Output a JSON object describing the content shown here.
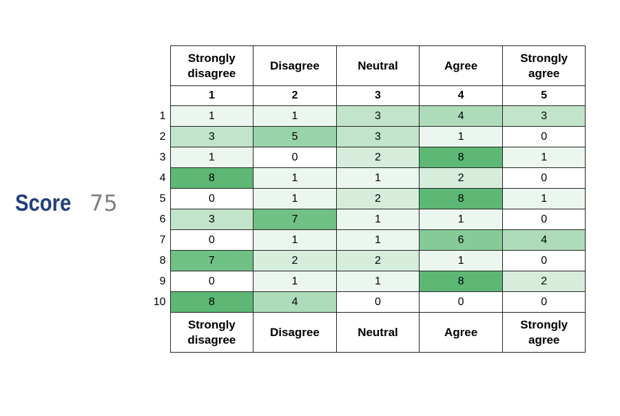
{
  "score": {
    "label": "Score",
    "value": "75"
  },
  "chart_data": {
    "type": "heatmap",
    "columns": [
      "Strongly disagree",
      "Disagree",
      "Neutral",
      "Agree",
      "Strongly agree"
    ],
    "column_numbers": [
      "1",
      "2",
      "3",
      "4",
      "5"
    ],
    "rows": [
      "1",
      "2",
      "3",
      "4",
      "5",
      "6",
      "7",
      "8",
      "9",
      "10"
    ],
    "values": [
      [
        1,
        1,
        3,
        4,
        3
      ],
      [
        3,
        5,
        3,
        1,
        0
      ],
      [
        1,
        0,
        2,
        8,
        1
      ],
      [
        8,
        1,
        1,
        2,
        0
      ],
      [
        0,
        1,
        2,
        8,
        1
      ],
      [
        3,
        7,
        1,
        1,
        0
      ],
      [
        0,
        1,
        1,
        6,
        4
      ],
      [
        7,
        2,
        2,
        1,
        0
      ],
      [
        0,
        1,
        1,
        8,
        2
      ],
      [
        8,
        4,
        0,
        0,
        0
      ]
    ],
    "color_scale": {
      "min_color": "#ffffff",
      "max_color": "#5cb874",
      "min": 0,
      "max": 8
    }
  }
}
